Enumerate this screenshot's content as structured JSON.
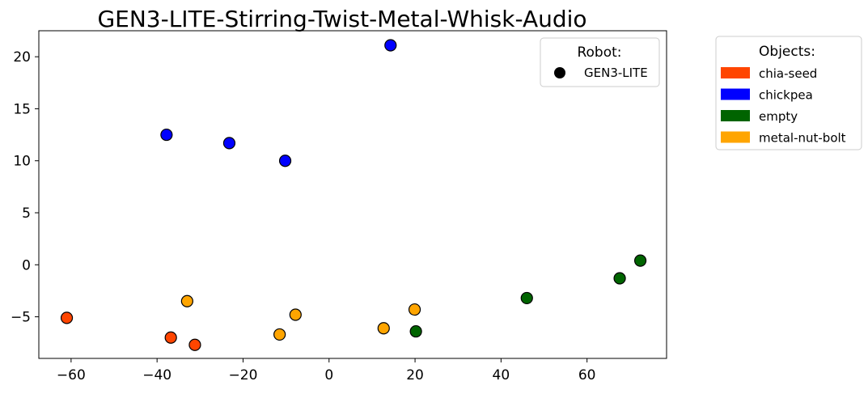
{
  "chart_data": {
    "type": "scatter",
    "title": "GEN3-LITE-Stirring-Twist-Metal-Whisk-Audio",
    "xlabel": "",
    "ylabel": "",
    "xlim": [
      -67.5,
      78.5
    ],
    "ylim": [
      -9.0,
      22.5
    ],
    "xticks": [
      -60,
      -40,
      -20,
      0,
      20,
      40,
      60
    ],
    "xtick_labels": [
      "−60",
      "−40",
      "−20",
      "0",
      "20",
      "40",
      "60"
    ],
    "yticks": [
      -5,
      0,
      5,
      10,
      15,
      20
    ],
    "ytick_labels": [
      "−5",
      "0",
      "5",
      "10",
      "15",
      "20"
    ],
    "grid": false,
    "series": [
      {
        "name": "chia-seed",
        "color": "#ff4500",
        "points": [
          {
            "x": -61.0,
            "y": -5.1
          },
          {
            "x": -36.8,
            "y": -7.0
          },
          {
            "x": -31.2,
            "y": -7.7
          }
        ]
      },
      {
        "name": "chickpea",
        "color": "#0000ff",
        "points": [
          {
            "x": -37.8,
            "y": 12.5
          },
          {
            "x": -23.2,
            "y": 11.7
          },
          {
            "x": -10.2,
            "y": 10.0
          },
          {
            "x": 14.3,
            "y": 21.1
          }
        ]
      },
      {
        "name": "empty",
        "color": "#006400",
        "points": [
          {
            "x": 46.0,
            "y": -3.2
          },
          {
            "x": 67.6,
            "y": -1.3
          },
          {
            "x": 72.4,
            "y": 0.4
          },
          {
            "x": 20.2,
            "y": -6.4
          }
        ]
      },
      {
        "name": "metal-nut-bolt",
        "color": "#ffa500",
        "points": [
          {
            "x": -33.0,
            "y": -3.5
          },
          {
            "x": -7.8,
            "y": -4.8
          },
          {
            "x": -11.5,
            "y": -6.7
          },
          {
            "x": 12.7,
            "y": -6.1
          },
          {
            "x": 19.9,
            "y": -4.3
          }
        ]
      }
    ],
    "legend_robot": {
      "title": "Robot:",
      "items": [
        {
          "label": "GEN3-LITE",
          "marker": "circle",
          "color": "#000000"
        }
      ]
    },
    "legend_objects": {
      "title": "Objects:",
      "items": [
        {
          "label": "chia-seed",
          "color": "#ff4500"
        },
        {
          "label": "chickpea",
          "color": "#0000ff"
        },
        {
          "label": "empty",
          "color": "#006400"
        },
        {
          "label": "metal-nut-bolt",
          "color": "#ffa500"
        }
      ]
    }
  }
}
